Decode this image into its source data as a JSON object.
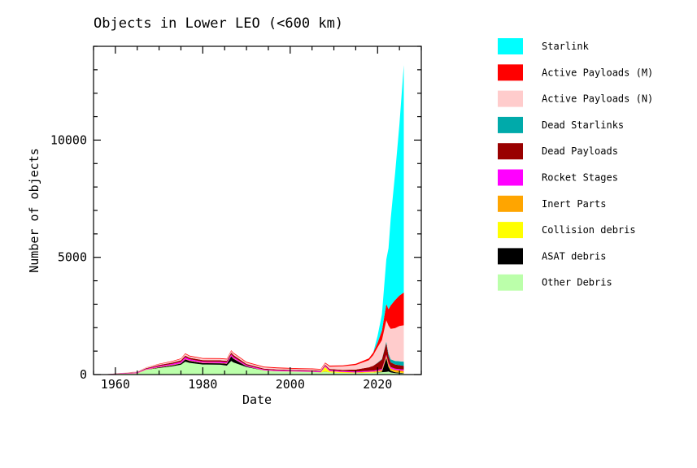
{
  "chart_data": {
    "type": "area",
    "stacked": true,
    "title": "Objects in Lower LEO (<600 km)",
    "xlabel": "Date",
    "ylabel": "Number of objects",
    "xlim": [
      1955,
      2030
    ],
    "ylim": [
      0,
      14000
    ],
    "x_ticks": [
      1960,
      1980,
      2000,
      2020
    ],
    "y_ticks": [
      0,
      5000,
      10000
    ],
    "legend_placement": "right-outside",
    "x": [
      1957,
      1960,
      1965,
      1967,
      1970,
      1973,
      1975,
      1976,
      1977,
      1980,
      1984,
      1985.5,
      1986.5,
      1987,
      1990,
      1994,
      1997,
      2000,
      2002,
      2005,
      2007,
      2008,
      2009,
      2012,
      2015,
      2018,
      2019,
      2020,
      2021,
      2022,
      2022.5,
      2023,
      2024,
      2025,
      2026
    ],
    "series": [
      {
        "name": "Other Debris",
        "color": "#bbffaa",
        "values": [
          0,
          20,
          50,
          200,
          280,
          350,
          420,
          550,
          500,
          430,
          420,
          380,
          580,
          520,
          320,
          170,
          140,
          130,
          120,
          110,
          90,
          120,
          90,
          70,
          60,
          80,
          80,
          90,
          100,
          110,
          130,
          90,
          60,
          50,
          40
        ]
      },
      {
        "name": "ASAT debris",
        "color": "#000000",
        "values": [
          0,
          0,
          0,
          0,
          30,
          40,
          50,
          100,
          80,
          60,
          60,
          80,
          200,
          160,
          30,
          0,
          0,
          0,
          0,
          0,
          0,
          10,
          0,
          0,
          0,
          0,
          0,
          10,
          20,
          600,
          200,
          80,
          40,
          30,
          20
        ]
      },
      {
        "name": "Collision debris",
        "color": "#ffff00",
        "values": [
          0,
          0,
          0,
          0,
          0,
          0,
          0,
          0,
          0,
          0,
          0,
          0,
          0,
          0,
          0,
          0,
          0,
          0,
          0,
          0,
          0,
          200,
          50,
          30,
          20,
          20,
          20,
          20,
          20,
          20,
          20,
          20,
          20,
          20,
          20
        ]
      },
      {
        "name": "Inert Parts",
        "color": "#ffa500",
        "values": [
          0,
          5,
          10,
          10,
          15,
          15,
          15,
          15,
          15,
          15,
          15,
          15,
          15,
          15,
          10,
          10,
          10,
          10,
          10,
          10,
          10,
          10,
          10,
          10,
          10,
          20,
          30,
          40,
          50,
          70,
          90,
          80,
          80,
          80,
          80
        ]
      },
      {
        "name": "Rocket Stages",
        "color": "#ff00ff",
        "values": [
          0,
          10,
          25,
          30,
          40,
          50,
          60,
          70,
          60,
          50,
          50,
          50,
          60,
          60,
          40,
          30,
          30,
          30,
          30,
          30,
          30,
          40,
          40,
          40,
          40,
          40,
          40,
          40,
          50,
          50,
          50,
          50,
          50,
          50,
          50
        ]
      },
      {
        "name": "Dead Payloads",
        "color": "#990000",
        "values": [
          0,
          5,
          15,
          30,
          40,
          50,
          60,
          70,
          60,
          60,
          60,
          60,
          80,
          80,
          50,
          40,
          40,
          30,
          30,
          30,
          30,
          40,
          50,
          50,
          80,
          150,
          200,
          300,
          400,
          500,
          300,
          200,
          180,
          170,
          160
        ]
      },
      {
        "name": "Dead Starlinks",
        "color": "#00aaaa",
        "values": [
          0,
          0,
          0,
          0,
          0,
          0,
          0,
          0,
          0,
          0,
          0,
          0,
          0,
          0,
          0,
          0,
          0,
          0,
          0,
          0,
          0,
          0,
          0,
          0,
          0,
          0,
          0,
          10,
          30,
          60,
          100,
          130,
          150,
          170,
          180
        ]
      },
      {
        "name": "Active Payloads (N)",
        "color": "#ffcccc",
        "values": [
          0,
          5,
          20,
          30,
          40,
          50,
          60,
          70,
          60,
          60,
          60,
          60,
          70,
          70,
          60,
          60,
          50,
          50,
          50,
          50,
          50,
          60,
          100,
          150,
          200,
          300,
          450,
          650,
          800,
          900,
          1200,
          1300,
          1400,
          1500,
          1550
        ]
      },
      {
        "name": "Active Payloads (M)",
        "color": "#ff0000",
        "values": [
          0,
          0,
          5,
          10,
          15,
          20,
          25,
          30,
          30,
          30,
          30,
          30,
          30,
          30,
          30,
          30,
          30,
          30,
          30,
          30,
          30,
          30,
          40,
          40,
          50,
          80,
          120,
          200,
          400,
          700,
          700,
          1000,
          1200,
          1300,
          1400
        ]
      },
      {
        "name": "Starlink",
        "color": "#00ffff",
        "values": [
          0,
          0,
          0,
          0,
          0,
          0,
          0,
          0,
          0,
          0,
          0,
          0,
          0,
          0,
          0,
          0,
          0,
          0,
          0,
          0,
          0,
          0,
          0,
          0,
          0,
          0,
          0,
          300,
          700,
          1900,
          2600,
          3700,
          5400,
          7300,
          9700
        ]
      }
    ]
  }
}
